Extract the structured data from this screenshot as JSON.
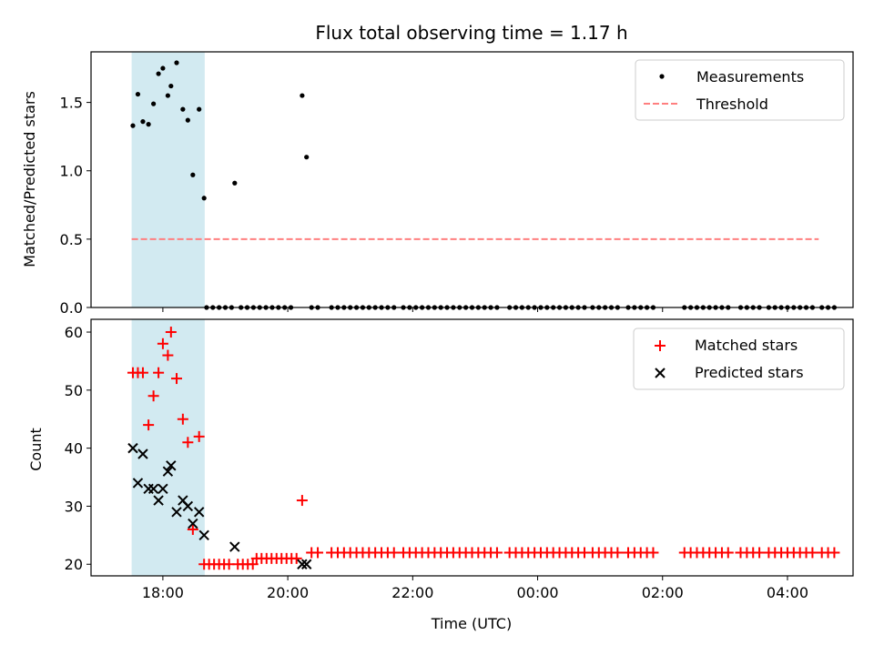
{
  "chart_data": {
    "title": "Flux total observing time = 1.17 h",
    "xlabel": "Time (UTC)",
    "x_unit": "hours since 00:00 of first day",
    "xlim": [
      16.85,
      29.05
    ],
    "x_ticks": [
      {
        "value": 18,
        "label": "18:00"
      },
      {
        "value": 20,
        "label": "20:00"
      },
      {
        "value": 22,
        "label": "22:00"
      },
      {
        "value": 24,
        "label": "00:00"
      },
      {
        "value": 26,
        "label": "02:00"
      },
      {
        "value": 28,
        "label": "04:00"
      }
    ],
    "highlight_span": {
      "x_start": 17.5,
      "x_end": 18.67,
      "color": "#add8e6"
    },
    "panels": [
      {
        "type": "scatter",
        "ylabel": "Matched/Predicted stars",
        "ylim": [
          0,
          1.87
        ],
        "y_ticks": [
          {
            "value": 0,
            "label": "0.0"
          },
          {
            "value": 0.5,
            "label": "0.5"
          },
          {
            "value": 1.0,
            "label": "1.0"
          },
          {
            "value": 1.5,
            "label": "1.5"
          }
        ],
        "legend": {
          "position": "top-right",
          "entries": [
            {
              "label": "Measurements",
              "color": "#000000",
              "marker": "dot"
            },
            {
              "label": "Threshold",
              "color": "#ff7f7f",
              "marker": "dashed-line"
            }
          ]
        },
        "threshold": {
          "name": "Threshold",
          "y": 0.5,
          "x_range": [
            17.5,
            28.5
          ],
          "color": "#ff7f7f"
        },
        "series": [
          {
            "name": "Measurements",
            "color": "#000000",
            "marker": "dot",
            "x": [
              17.52,
              17.6,
              17.68,
              17.77,
              17.85,
              17.93,
              18.0,
              18.08,
              18.13,
              18.22,
              18.32,
              18.4,
              18.48,
              18.58,
              18.66,
              19.15,
              20.23,
              20.3
            ],
            "y": [
              1.33,
              1.56,
              1.36,
              1.34,
              1.49,
              1.71,
              1.75,
              1.55,
              1.62,
              1.79,
              1.45,
              1.37,
              0.97,
              1.45,
              0.8,
              0.91,
              1.55,
              1.1
            ]
          },
          {
            "name": "Measurements (zero)",
            "color": "#000000",
            "marker": "dot",
            "y_constant": 0,
            "x_ranges": [
              [
                18.7,
                19.1
              ],
              [
                19.25,
                20.12
              ],
              [
                20.38,
                20.52
              ],
              [
                20.7,
                21.75
              ],
              [
                21.85,
                22.5
              ],
              [
                22.55,
                23.35
              ],
              [
                23.55,
                24.8
              ],
              [
                24.88,
                25.35
              ],
              [
                25.45,
                25.9
              ],
              [
                26.35,
                26.65
              ],
              [
                26.75,
                27.05
              ],
              [
                27.25,
                27.6
              ],
              [
                27.7,
                28.4
              ],
              [
                28.55,
                28.75
              ]
            ],
            "spacing": 0.1
          }
        ]
      },
      {
        "type": "scatter",
        "ylabel": "Count",
        "ylim": [
          18.0,
          62.2
        ],
        "y_ticks": [
          {
            "value": 20,
            "label": "20"
          },
          {
            "value": 30,
            "label": "30"
          },
          {
            "value": 40,
            "label": "40"
          },
          {
            "value": 50,
            "label": "50"
          },
          {
            "value": 60,
            "label": "60"
          }
        ],
        "legend": {
          "position": "top-right",
          "entries": [
            {
              "label": "Matched stars",
              "color": "#ff0000",
              "marker": "plus"
            },
            {
              "label": "Predicted stars",
              "color": "#000000",
              "marker": "x"
            }
          ]
        },
        "series": [
          {
            "name": "Matched stars",
            "color": "#ff0000",
            "marker": "plus",
            "x": [
              17.52,
              17.6,
              17.68,
              17.77,
              17.85,
              17.93,
              18.0,
              18.08,
              18.13,
              18.22,
              18.32,
              18.4,
              18.48,
              18.58,
              20.23
            ],
            "y": [
              53,
              53,
              53,
              44,
              49,
              53,
              58,
              56,
              60,
              52,
              45,
              41,
              26,
              42,
              31
            ]
          },
          {
            "name": "Matched stars (baseline)",
            "color": "#ff0000",
            "marker": "plus",
            "x_ranges": [
              [
                18.66,
                19.1
              ],
              [
                19.2,
                19.5
              ]
            ],
            "y_constant": 20,
            "spacing": 0.08
          },
          {
            "name": "Matched stars (baseline 21)",
            "color": "#ff0000",
            "marker": "plus",
            "x_ranges": [
              [
                19.5,
                20.15
              ]
            ],
            "y_constant": 21,
            "spacing": 0.08
          },
          {
            "name": "Matched stars (baseline 22)",
            "color": "#ff0000",
            "marker": "plus",
            "x_ranges": [
              [
                20.38,
                20.52
              ],
              [
                20.7,
                21.75
              ],
              [
                21.85,
                22.5
              ],
              [
                22.55,
                23.35
              ],
              [
                23.55,
                24.8
              ],
              [
                24.88,
                25.35
              ],
              [
                25.45,
                25.9
              ],
              [
                26.35,
                26.65
              ],
              [
                26.75,
                27.05
              ],
              [
                27.25,
                27.6
              ],
              [
                27.7,
                28.4
              ],
              [
                28.55,
                28.75
              ]
            ],
            "y_constant": 22,
            "spacing": 0.1
          },
          {
            "name": "Predicted stars",
            "color": "#000000",
            "marker": "x",
            "x": [
              17.52,
              17.6,
              17.68,
              17.77,
              17.85,
              17.93,
              18.0,
              18.08,
              18.13,
              18.22,
              18.32,
              18.4,
              18.48,
              18.58,
              18.66,
              19.15,
              20.23,
              20.3
            ],
            "y": [
              40,
              34,
              39,
              33,
              33,
              31,
              33,
              36,
              37,
              29,
              31,
              30,
              27,
              29,
              25,
              23,
              20,
              20
            ]
          }
        ]
      }
    ]
  }
}
